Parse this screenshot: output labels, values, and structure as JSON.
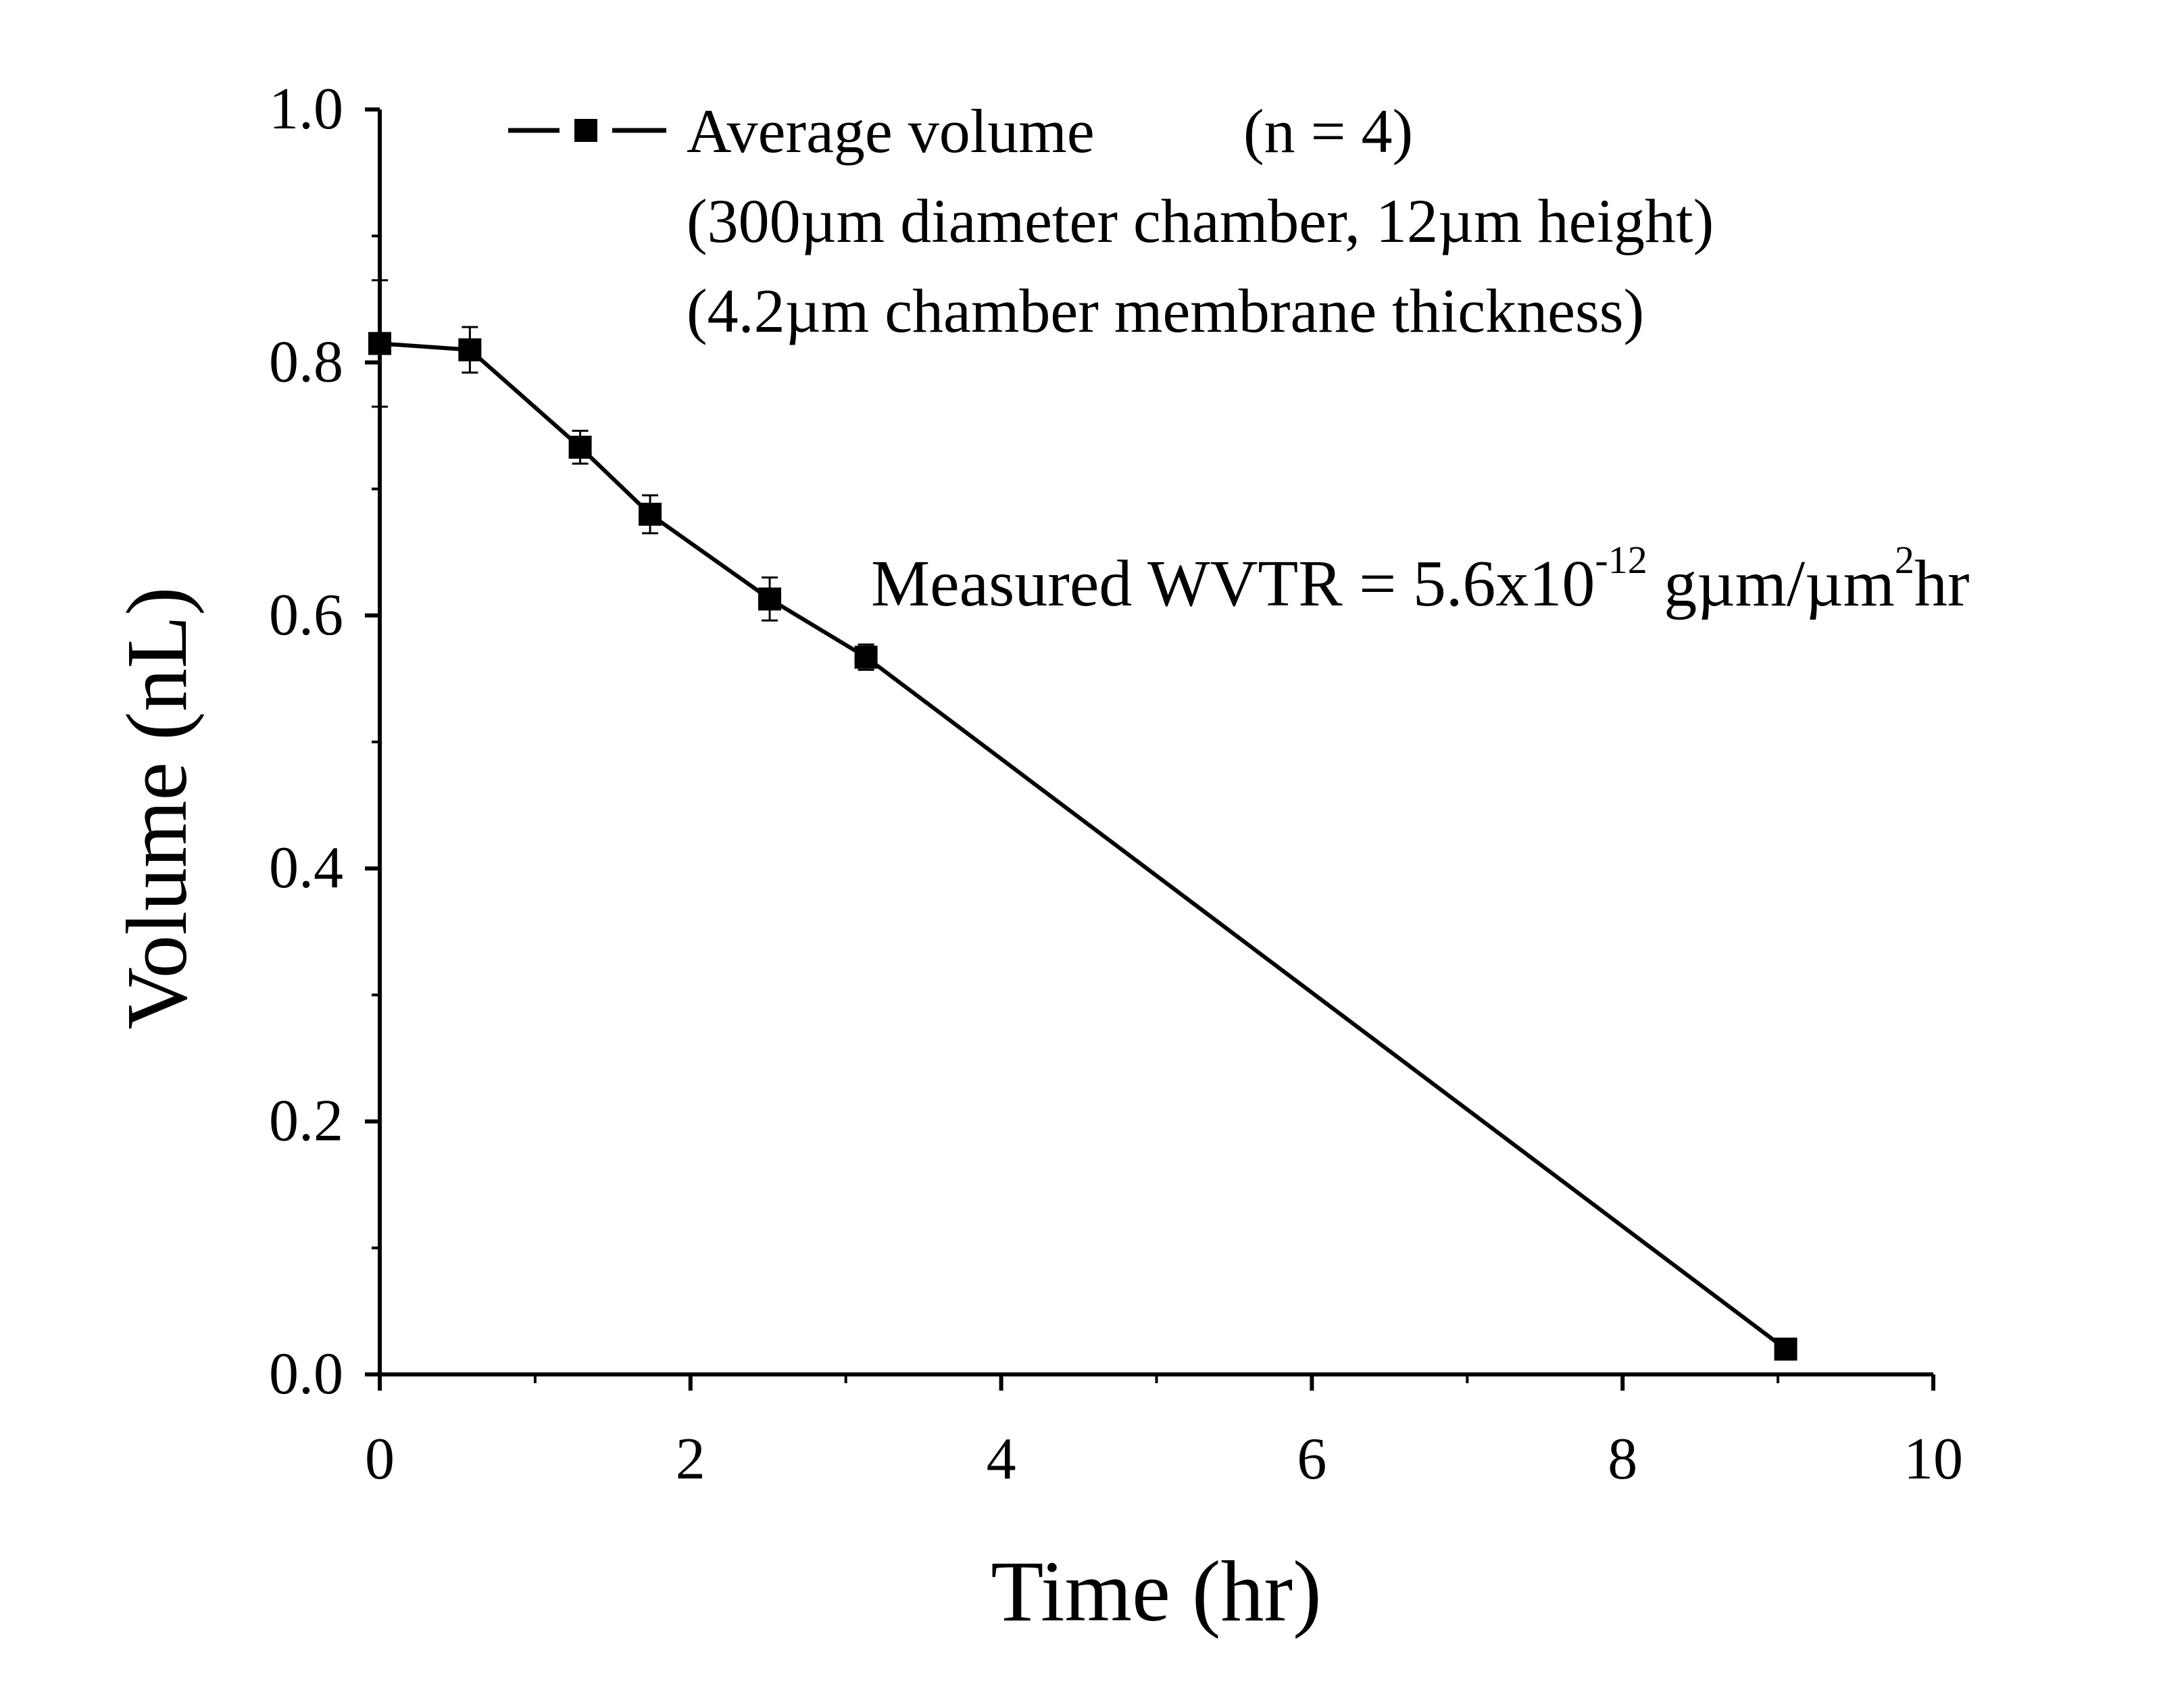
{
  "chart_data": {
    "type": "line",
    "title": "",
    "xlabel": "Time (hr)",
    "ylabel": "Volume (nL)",
    "xlim": [
      0,
      10
    ],
    "ylim": [
      0,
      1.0
    ],
    "x_ticks": [
      0,
      2,
      4,
      6,
      8,
      10
    ],
    "x_tick_labels": [
      "0",
      "2",
      "4",
      "6",
      "8",
      "10"
    ],
    "y_ticks": [
      0,
      0.2,
      0.4,
      0.6,
      0.8,
      1.0
    ],
    "y_tick_labels": [
      "0.0",
      "0.2",
      "0.4",
      "0.6",
      "0.8",
      "1.0"
    ],
    "grid": false,
    "legend": {
      "position": "top-right",
      "label": "Average volume",
      "n_label": "(n = 4)",
      "lines": [
        "(300µm diameter chamber, 12µm height)",
        "(4.2µm chamber membrane thickness)"
      ]
    },
    "annotation": {
      "prefix": "Measured WVTR = 5.6x10",
      "exp": "-12",
      "mid": " gµm/µm",
      "exp2": "2",
      "suffix": "hr"
    },
    "series": [
      {
        "name": "Average volume",
        "marker": "square",
        "color": "#000000",
        "x": [
          0,
          0.58,
          1.29,
          1.74,
          2.51,
          3.13,
          9.05
        ],
        "y": [
          0.815,
          0.81,
          0.733,
          0.68,
          0.613,
          0.567,
          0.02
        ],
        "yerr": [
          0.05,
          0.018,
          0.013,
          0.015,
          0.017,
          0.01,
          0.0
        ]
      }
    ]
  }
}
